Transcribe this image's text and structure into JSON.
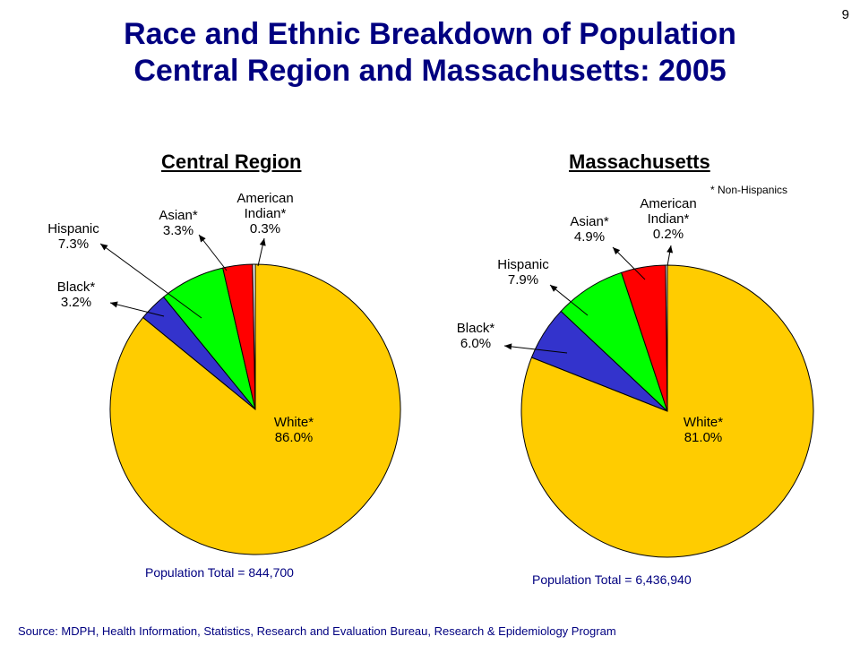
{
  "page_number": "9",
  "title": {
    "line1": "Race and Ethnic Breakdown of Population",
    "line2": "Central Region and Massachusetts: 2005"
  },
  "footnote": "* Non-Hispanics",
  "source": "Source:  MDPH, Health Information, Statistics, Research and Evaluation Bureau, Research & Epidemiology Program",
  "colors": {
    "white": "#ffcc00",
    "black": "#3333cc",
    "hispanic": "#00ff00",
    "asian": "#ff0000",
    "american_indian": "#ffffff",
    "title": "#000080"
  },
  "chart_data": [
    {
      "type": "pie",
      "title": "Central Region",
      "population_total": "Population Total = 844,700",
      "slices": [
        {
          "key": "white",
          "label": "White*",
          "value": 86.0,
          "value_text": "86.0%"
        },
        {
          "key": "black",
          "label": "Black*",
          "value": 3.2,
          "value_text": "3.2%"
        },
        {
          "key": "hispanic",
          "label": "Hispanic",
          "value": 7.3,
          "value_text": "7.3%"
        },
        {
          "key": "asian",
          "label": "Asian*",
          "value": 3.3,
          "value_text": "3.3%"
        },
        {
          "key": "american_indian",
          "label_lines": [
            "American",
            "Indian*"
          ],
          "value": 0.3,
          "value_text": "0.3%"
        }
      ]
    },
    {
      "type": "pie",
      "title": "Massachusetts",
      "population_total": "Population Total = 6,436,940",
      "slices": [
        {
          "key": "white",
          "label": "White*",
          "value": 81.0,
          "value_text": "81.0%"
        },
        {
          "key": "black",
          "label": "Black*",
          "value": 6.0,
          "value_text": "6.0%"
        },
        {
          "key": "hispanic",
          "label": "Hispanic",
          "value": 7.9,
          "value_text": "7.9%"
        },
        {
          "key": "asian",
          "label": "Asian*",
          "value": 4.9,
          "value_text": "4.9%"
        },
        {
          "key": "american_indian",
          "label_lines": [
            "American",
            "Indian*"
          ],
          "value": 0.2,
          "value_text": "0.2%"
        }
      ]
    }
  ]
}
